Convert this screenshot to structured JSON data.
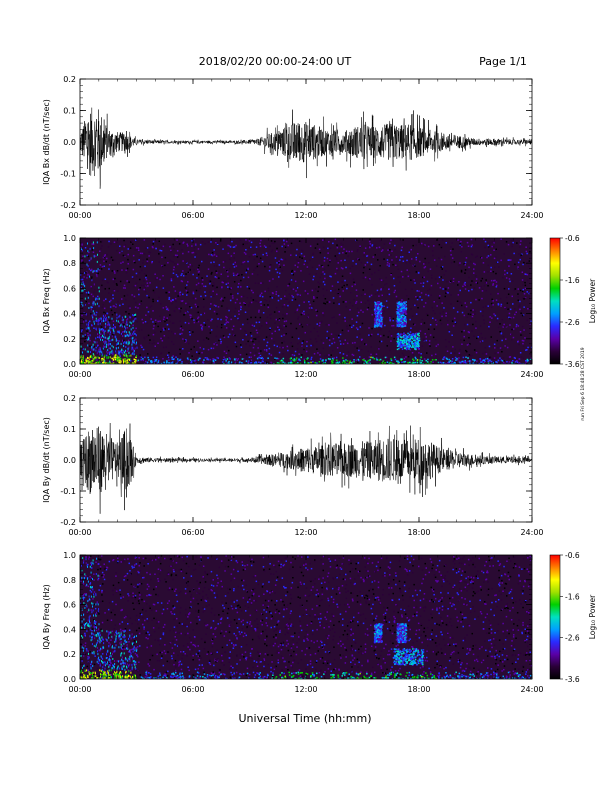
{
  "header": {
    "date_range": "2018/02/20  00:00-24:00 UT",
    "page": "Page 1/1"
  },
  "footer": {
    "xlabel": "Universal Time (hh:mm)"
  },
  "side_stamp": "run Fri Sep 6 18:48:28 CST 2019",
  "colors": {
    "trace": "#000000",
    "spectrogram_background": "#2a0a33",
    "colormap": [
      "#000000",
      "#2a0038",
      "#5a00a8",
      "#2a2aff",
      "#00a0ff",
      "#00e0c0",
      "#00d000",
      "#a0e000",
      "#ffff00",
      "#ff8000",
      "#ff0000"
    ]
  },
  "chart_data": [
    {
      "type": "line",
      "ylabel": "IQA Bx dB/dt (nT/sec)",
      "ylim": [
        -0.2,
        0.2
      ],
      "yticks": [
        "0.2",
        "0.1",
        "0.0",
        "-0.1",
        "-0.2"
      ],
      "xlim": [
        0,
        24
      ],
      "xticks": [
        "00:00",
        "06:00",
        "12:00",
        "18:00",
        "24:00"
      ],
      "series": [
        {
          "x": [
            0,
            0.5,
            1,
            1.5,
            2,
            2.5,
            3,
            4,
            5,
            6,
            7,
            8,
            9,
            9.5,
            10,
            10.5,
            11,
            11.5,
            12,
            12.5,
            13,
            13.5,
            14,
            14.5,
            15,
            15.5,
            16,
            16.5,
            17,
            17.5,
            18,
            18.5,
            19,
            19.5,
            20,
            21,
            22,
            23,
            24
          ],
          "y": [
            0.06,
            0.2,
            0.2,
            0.08,
            0.06,
            0.05,
            0.015,
            0.01,
            0.008,
            0.008,
            0.008,
            0.008,
            0.012,
            0.02,
            0.05,
            0.06,
            0.1,
            0.12,
            0.12,
            0.1,
            0.08,
            0.07,
            0.06,
            0.09,
            0.1,
            0.09,
            0.1,
            0.11,
            0.1,
            0.11,
            0.09,
            0.07,
            0.06,
            0.05,
            0.04,
            0.02,
            0.02,
            0.015,
            0.015
          ]
        }
      ]
    },
    {
      "type": "heatmap",
      "ylabel": "IQA Bx Freq (Hz)",
      "ylim": [
        0,
        1.0
      ],
      "yticks": [
        "1.0",
        "0.8",
        "0.6",
        "0.4",
        "0.2",
        "0.0"
      ],
      "xlim": [
        0,
        24
      ],
      "xticks": [
        "00:00",
        "06:00",
        "12:00",
        "18:00",
        "24:00"
      ],
      "colorbar": {
        "label": "Log₁₀ Power",
        "range": [
          -3.6,
          -0.6
        ],
        "ticks": [
          "-0.6",
          "-1.6",
          "-2.6",
          "-3.6"
        ]
      },
      "features": [
        {
          "name": "pc1-a",
          "t_start": 15.6,
          "t_end": 16.0,
          "f_low": 0.3,
          "f_high": 0.5,
          "level": -2.2
        },
        {
          "name": "pc1-b",
          "t_start": 16.8,
          "t_end": 17.3,
          "f_low": 0.3,
          "f_high": 0.5,
          "level": -2.2
        },
        {
          "name": "pc1-c",
          "t_start": 16.8,
          "t_end": 18.0,
          "f_low": 0.12,
          "f_high": 0.25,
          "level": -2.0
        }
      ]
    },
    {
      "type": "line",
      "ylabel": "IQA By dB/dt (nT/sec)",
      "ylim": [
        -0.2,
        0.2
      ],
      "yticks": [
        "0.2",
        "0.1",
        "0.0",
        "-0.1",
        "-0.2"
      ],
      "xlim": [
        0,
        24
      ],
      "xticks": [
        "00:00",
        "06:00",
        "12:00",
        "18:00",
        "24:00"
      ],
      "series": [
        {
          "x": [
            0,
            0.5,
            1,
            1.5,
            2,
            2.5,
            3,
            4,
            5,
            6,
            7,
            8,
            9,
            9.5,
            10,
            10.5,
            11,
            11.5,
            12,
            12.5,
            13,
            13.5,
            14,
            14.5,
            15,
            15.5,
            16,
            16.5,
            17,
            17.5,
            18,
            18.5,
            19,
            19.5,
            20,
            21,
            22,
            23,
            24
          ],
          "y": [
            0.08,
            0.2,
            0.2,
            0.15,
            0.1,
            0.2,
            0.02,
            0.012,
            0.01,
            0.01,
            0.008,
            0.01,
            0.012,
            0.02,
            0.03,
            0.04,
            0.05,
            0.06,
            0.08,
            0.08,
            0.09,
            0.1,
            0.1,
            0.1,
            0.11,
            0.11,
            0.13,
            0.13,
            0.12,
            0.12,
            0.13,
            0.12,
            0.08,
            0.06,
            0.05,
            0.03,
            0.02,
            0.02,
            0.015
          ]
        }
      ]
    },
    {
      "type": "heatmap",
      "ylabel": "IQA By Freq (Hz)",
      "ylim": [
        0,
        1.0
      ],
      "yticks": [
        "1.0",
        "0.8",
        "0.6",
        "0.4",
        "0.2",
        "0.0"
      ],
      "xlim": [
        0,
        24
      ],
      "xticks": [
        "00:00",
        "06:00",
        "12:00",
        "18:00",
        "24:00"
      ],
      "colorbar": {
        "label": "Log₁₀ Power",
        "range": [
          -3.6,
          -0.6
        ],
        "ticks": [
          "-0.6",
          "-1.6",
          "-2.6",
          "-3.6"
        ]
      },
      "features": [
        {
          "name": "pc1-a",
          "t_start": 15.6,
          "t_end": 16.0,
          "f_low": 0.3,
          "f_high": 0.45,
          "level": -2.2
        },
        {
          "name": "pc1-b",
          "t_start": 16.8,
          "t_end": 17.3,
          "f_low": 0.3,
          "f_high": 0.45,
          "level": -2.2
        },
        {
          "name": "pc1-c",
          "t_start": 16.6,
          "t_end": 18.2,
          "f_low": 0.12,
          "f_high": 0.25,
          "level": -2.0
        }
      ]
    }
  ]
}
